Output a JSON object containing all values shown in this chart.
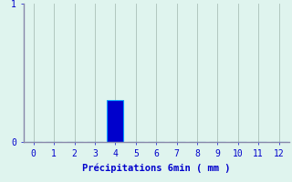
{
  "categories": [
    0,
    1,
    2,
    3,
    4,
    5,
    6,
    7,
    8,
    9,
    10,
    11,
    12
  ],
  "values": [
    0,
    0,
    0,
    0,
    0.3,
    0,
    0,
    0,
    0,
    0,
    0,
    0,
    0
  ],
  "bar_color": "#0000cc",
  "bar_edge_color": "#0099ff",
  "background_color": "#dff4ee",
  "grid_color": "#aac0b8",
  "axis_color": "#8888aa",
  "label_color": "#0000cc",
  "xlabel": "Précipitations 6min ( mm )",
  "ylim": [
    0,
    1
  ],
  "xlim": [
    -0.5,
    12.5
  ],
  "yticks": [
    0,
    1
  ],
  "xticks": [
    0,
    1,
    2,
    3,
    4,
    5,
    6,
    7,
    8,
    9,
    10,
    11,
    12
  ],
  "xlabel_fontsize": 7.5,
  "tick_fontsize": 7,
  "bar_width": 0.8
}
